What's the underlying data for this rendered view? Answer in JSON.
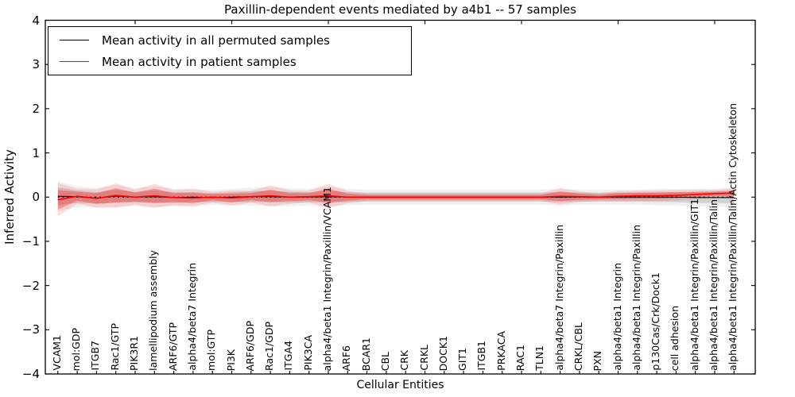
{
  "figure": {
    "title": "Paxillin-dependent events mediated by a4b1 -- 57 samples",
    "xlabel": "Cellular Entities",
    "ylabel": "Inferred Activity"
  },
  "legend": {
    "items": [
      {
        "label": "Mean activity in all permuted samples",
        "color": "#000000"
      },
      {
        "label": "Mean activity in patient samples",
        "color": "#ff0000"
      }
    ]
  },
  "chart_data": {
    "type": "line",
    "title": "Paxillin-dependent events mediated by a4b1 -- 57 samples",
    "xlabel": "Cellular Entities",
    "ylabel": "Inferred Activity",
    "ylim": [
      -4,
      4
    ],
    "yticks": [
      4,
      3,
      2,
      1,
      0,
      -1,
      -2,
      -3,
      -4
    ],
    "grid": false,
    "legend_position": "upper left",
    "refline": {
      "y": 0,
      "style": "dotted",
      "color": "#000000"
    },
    "categories": [
      "VCAM1",
      "mol:GDP",
      "ITGB7",
      "Rac1/GTP",
      "PIK3R1",
      "lamellipodium assembly",
      "ARF6/GTP",
      "alpha4/beta7 Integrin",
      "mol:GTP",
      "PI3K",
      "ARF6/GDP",
      "Rac1/GDP",
      "ITGA4",
      "PIK3CA",
      "alpha4/beta1 Integrin/Paxillin/VCAM1",
      "ARF6",
      "BCAR1",
      "CBL",
      "CRK",
      "CRKL",
      "DOCK1",
      "GIT1",
      "ITGB1",
      "PRKACA",
      "RAC1",
      "TLN1",
      "alpha4/beta7 Integrin/Paxillin",
      "CRKL/CBL",
      "PXN",
      "alpha4/beta1 Integrin",
      "alpha4/beta1 Integrin/Paxillin",
      "p130Cas/Crk/Dock1",
      "cell adhesion",
      "alpha4/beta1 Integrin/Paxillin/GIT1",
      "alpha4/beta1 Integrin/Paxillin/Talin",
      "alpha4/beta1 Integrin/Paxillin/Talin/Actin Cytoskeleton"
    ],
    "series": [
      {
        "name": "Mean activity in all permuted samples",
        "color": "#000000",
        "band_color": "#000000",
        "band_opacity": 0.13,
        "values": [
          0.02,
          0.01,
          -0.02,
          0.02,
          0.0,
          0.01,
          -0.01,
          0.0,
          -0.01,
          0.0,
          0.01,
          0.01,
          0.0,
          0.0,
          0.01,
          0.0,
          0.0,
          0.0,
          0.0,
          0.0,
          0.0,
          0.0,
          0.0,
          0.0,
          0.0,
          0.0,
          0.0,
          0.0,
          0.0,
          0.0,
          0.0,
          0.0,
          0.0,
          -0.01,
          -0.01,
          -0.01
        ],
        "band_halfwidth": [
          0.2,
          0.14,
          0.13,
          0.15,
          0.12,
          0.14,
          0.12,
          0.11,
          0.1,
          0.11,
          0.12,
          0.13,
          0.12,
          0.11,
          0.13,
          0.11,
          0.1,
          0.1,
          0.1,
          0.1,
          0.1,
          0.1,
          0.1,
          0.1,
          0.1,
          0.1,
          0.11,
          0.1,
          0.1,
          0.1,
          0.1,
          0.11,
          0.11,
          0.12,
          0.12,
          0.13
        ]
      },
      {
        "name": "Mean activity in patient samples",
        "color": "#ff0000",
        "band_color": "#ff0000",
        "band_opacity": 0.3,
        "values": [
          -0.06,
          0.02,
          -0.03,
          0.04,
          0.0,
          0.03,
          -0.01,
          -0.02,
          0.0,
          -0.02,
          0.01,
          0.03,
          0.0,
          0.01,
          0.03,
          0.0,
          0.0,
          0.0,
          0.0,
          0.0,
          0.0,
          0.0,
          0.0,
          0.0,
          0.0,
          0.0,
          0.02,
          0.01,
          0.0,
          0.02,
          0.03,
          0.03,
          0.04,
          0.06,
          0.08,
          0.09
        ],
        "band_halfwidth": [
          0.22,
          0.1,
          0.12,
          0.16,
          0.1,
          0.16,
          0.1,
          0.12,
          0.07,
          0.1,
          0.08,
          0.14,
          0.09,
          0.08,
          0.16,
          0.08,
          0.05,
          0.05,
          0.05,
          0.05,
          0.05,
          0.05,
          0.05,
          0.05,
          0.05,
          0.05,
          0.11,
          0.07,
          0.05,
          0.07,
          0.07,
          0.07,
          0.07,
          0.06,
          0.05,
          0.06
        ]
      }
    ]
  }
}
